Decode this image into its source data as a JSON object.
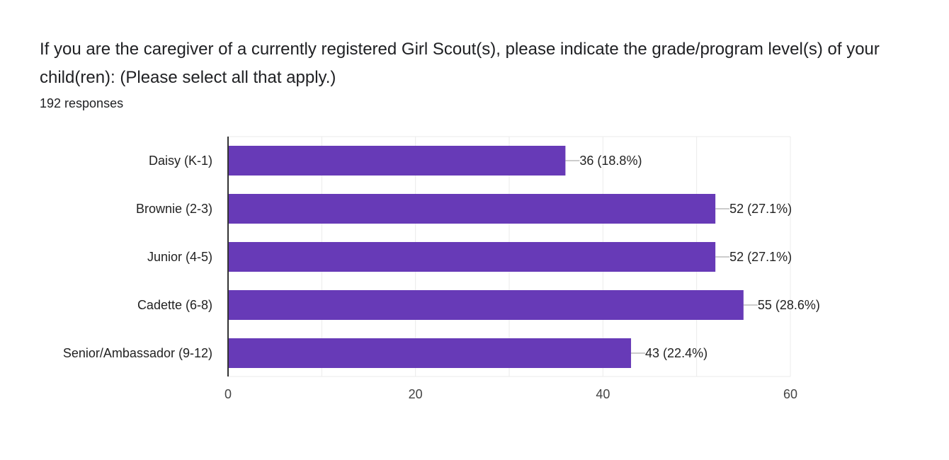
{
  "question": {
    "title": "If you are the caregiver of a currently registered Girl Scout(s), please indicate the grade/program level(s) of your child(ren): (Please select all that apply.)",
    "responses": "192 responses"
  },
  "colors": {
    "bar": "#673ab7",
    "axis": "#333333",
    "grid": "#ebebeb",
    "leader": "#999999"
  },
  "chart_data": {
    "type": "bar",
    "orientation": "horizontal",
    "title": "",
    "xlabel": "",
    "ylabel": "",
    "categories": [
      "Daisy (K-1)",
      "Brownie (2-3)",
      "Junior (4-5)",
      "Cadette (6-8)",
      "Senior/Ambassador (9-12)"
    ],
    "values": [
      36,
      52,
      52,
      55,
      43
    ],
    "data_labels": [
      "36 (18.8%)",
      "52 (27.1%)",
      "52 (27.1%)",
      "55 (28.6%)",
      "43 (22.4%)"
    ],
    "xlim": [
      0,
      60
    ],
    "xticks": [
      "0",
      "20",
      "40",
      "60"
    ],
    "grid": true,
    "legend": "none"
  }
}
